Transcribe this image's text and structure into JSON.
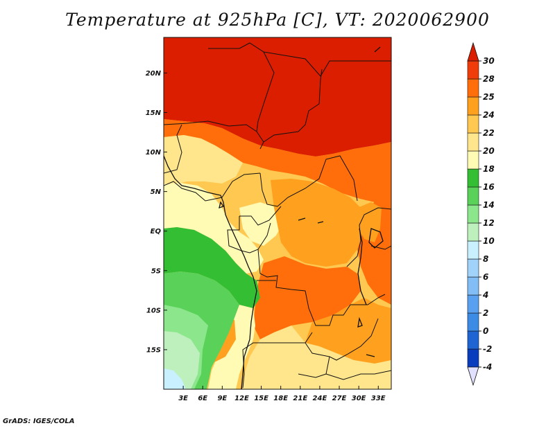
{
  "title": "Temperature at 925hPa [C], VT: 2020062900",
  "footer": "GrADS: IGES/COLA",
  "map": {
    "lon_range": [
      0,
      35
    ],
    "lat_range": [
      -20,
      24.5
    ],
    "lat_ticks": [
      {
        "value": 20,
        "label": "20N"
      },
      {
        "value": 15,
        "label": "15N"
      },
      {
        "value": 10,
        "label": "10N"
      },
      {
        "value": 5,
        "label": "5N"
      },
      {
        "value": 0,
        "label": "EQ"
      },
      {
        "value": -5,
        "label": "5S"
      },
      {
        "value": -10,
        "label": "10S"
      },
      {
        "value": -15,
        "label": "15S"
      }
    ],
    "lon_ticks": [
      {
        "value": 3,
        "label": "3E"
      },
      {
        "value": 6,
        "label": "6E"
      },
      {
        "value": 9,
        "label": "9E"
      },
      {
        "value": 12,
        "label": "12E"
      },
      {
        "value": 15,
        "label": "15E"
      },
      {
        "value": 18,
        "label": "18E"
      },
      {
        "value": 21,
        "label": "21E"
      },
      {
        "value": 24,
        "label": "24E"
      },
      {
        "value": 27,
        "label": "27E"
      },
      {
        "value": 30,
        "label": "30E"
      },
      {
        "value": 33,
        "label": "33E"
      }
    ]
  },
  "colorbar": {
    "levels": [
      "-4",
      "-2",
      "0",
      "2",
      "4",
      "6",
      "8",
      "10",
      "12",
      "14",
      "16",
      "18",
      "20",
      "22",
      "24",
      "25",
      "28",
      "30"
    ],
    "colors": [
      "#0a0a6e",
      "#0a3cbe",
      "#1e64d2",
      "#3c8ce6",
      "#5aa0f0",
      "#82bef5",
      "#a0d2fa",
      "#c8f0ff",
      "#bef0be",
      "#8ce68c",
      "#5ad25a",
      "#34be34",
      "#fffab4",
      "#ffe68c",
      "#ffc850",
      "#ffa01e",
      "#ff6e0a",
      "#f03c0a",
      "#dc1e00"
    ],
    "under_color": "#e1e1ff",
    "over_color": "#dc1e00"
  }
}
